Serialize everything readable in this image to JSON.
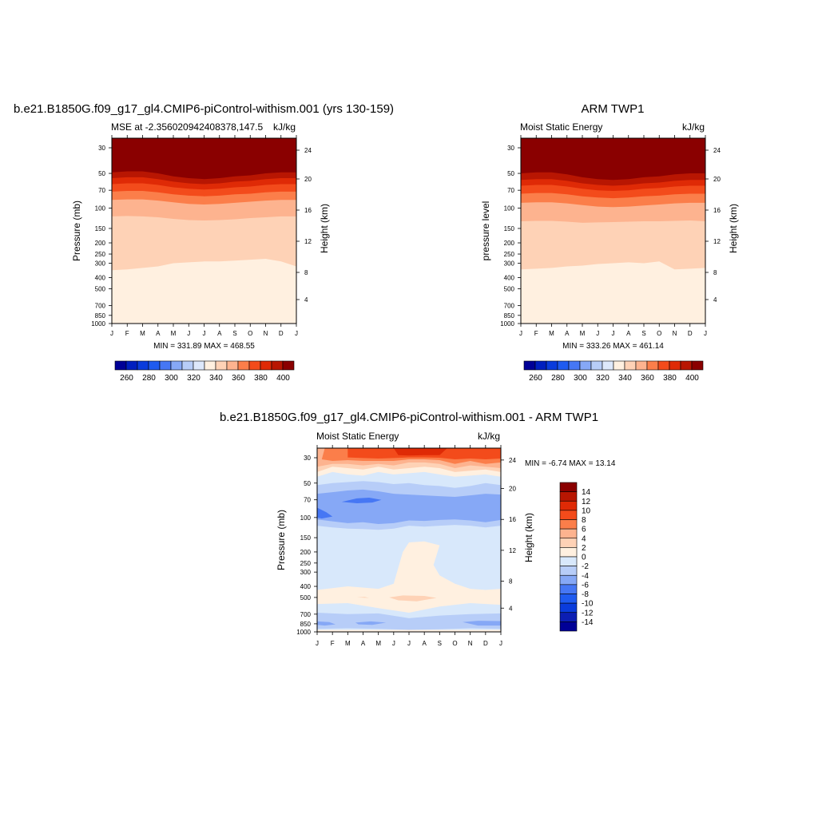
{
  "chart_data": [
    {
      "type": "heatmap",
      "title": "b.e21.B1850G.f09_g17_gl4.CMIP6-piControl-withism.001 (yrs 130-159)",
      "left_subtitle": "MSE at -2.356020942408378,147.5",
      "right_subtitle": "kJ/kg",
      "ylabel": "Pressure (mb)",
      "ylabel_right": "Height (km)",
      "x_ticks": [
        "J",
        "F",
        "M",
        "A",
        "M",
        "J",
        "J",
        "A",
        "S",
        "O",
        "N",
        "D",
        "J"
      ],
      "y_ticks": [
        30,
        50,
        70,
        100,
        150,
        200,
        250,
        300,
        400,
        500,
        700,
        850,
        1000
      ],
      "height_ticks": [
        24,
        20,
        16,
        12,
        8,
        4
      ],
      "minmax": "MIN = 331.89 MAX = 468.55",
      "colorbar_labels": [
        "260",
        "280",
        "300",
        "320",
        "340",
        "360",
        "380",
        "400"
      ],
      "contour_levels": [
        400,
        390,
        380,
        370,
        360,
        350,
        340,
        330
      ],
      "contour_boundaries_mb": [
        [
          49,
          48,
          48,
          50,
          53,
          55,
          56,
          55,
          53,
          52,
          50,
          49,
          49
        ],
        [
          55,
          54,
          54,
          56,
          59,
          61,
          62,
          61,
          59,
          58,
          56,
          55,
          55
        ],
        [
          62,
          61,
          61,
          63,
          66,
          68,
          69,
          68,
          66,
          65,
          63,
          62,
          62
        ],
        [
          72,
          71,
          71,
          73,
          76,
          78,
          79,
          78,
          76,
          75,
          73,
          72,
          72
        ],
        [
          85,
          84,
          84,
          86,
          89,
          92,
          93,
          92,
          90,
          88,
          86,
          85,
          85
        ],
        [
          118,
          117,
          118,
          120,
          124,
          127,
          128,
          127,
          125,
          122,
          120,
          118,
          118
        ],
        [
          345,
          340,
          330,
          320,
          300,
          295,
          290,
          290,
          285,
          280,
          275,
          290,
          320
        ],
        [
          900,
          900,
          900,
          900,
          900,
          900,
          900,
          900,
          900,
          900,
          900,
          900,
          900
        ]
      ]
    },
    {
      "type": "heatmap",
      "title": "ARM TWP1",
      "left_subtitle": "Moist Static Energy",
      "right_subtitle": "kJ/kg",
      "ylabel": "pressure level",
      "ylabel_right": "Height (km)",
      "x_ticks": [
        "J",
        "F",
        "M",
        "A",
        "M",
        "J",
        "J",
        "A",
        "S",
        "O",
        "N",
        "D",
        "J"
      ],
      "y_ticks": [
        30,
        50,
        70,
        100,
        150,
        200,
        250,
        300,
        400,
        500,
        700,
        850,
        1000
      ],
      "height_ticks": [
        24,
        20,
        16,
        12,
        8,
        4
      ],
      "minmax": "MIN = 333.26 MAX = 461.14",
      "colorbar_labels": [
        "260",
        "280",
        "300",
        "320",
        "340",
        "360",
        "380",
        "400"
      ],
      "contour_levels": [
        400,
        390,
        380,
        370,
        360,
        350,
        340,
        330
      ],
      "contour_boundaries_mb": [
        [
          50,
          49,
          49,
          51,
          54,
          56,
          57,
          56,
          54,
          53,
          51,
          50,
          50
        ],
        [
          57,
          56,
          56,
          58,
          61,
          63,
          64,
          63,
          61,
          60,
          58,
          57,
          57
        ],
        [
          64,
          63,
          63,
          65,
          68,
          70,
          71,
          70,
          68,
          67,
          65,
          64,
          64
        ],
        [
          75,
          74,
          74,
          76,
          79,
          81,
          82,
          81,
          79,
          78,
          76,
          75,
          75
        ],
        [
          90,
          89,
          89,
          91,
          94,
          97,
          98,
          97,
          95,
          93,
          91,
          90,
          90
        ],
        [
          130,
          129,
          129,
          131,
          134,
          133,
          132,
          131,
          130,
          130,
          129,
          128,
          130
        ],
        [
          340,
          335,
          330,
          320,
          315,
          305,
          300,
          295,
          300,
          290,
          340,
          335,
          330
        ],
        [
          880,
          870,
          880,
          880,
          860,
          870,
          880,
          870,
          880,
          860,
          860,
          870,
          880
        ]
      ]
    },
    {
      "type": "heatmap",
      "title": "b.e21.B1850G.f09_g17_gl4.CMIP6-piControl-withism.001 - ARM TWP1",
      "left_subtitle": "Moist Static Energy",
      "right_subtitle": "kJ/kg",
      "ylabel": "Pressure (mb)",
      "ylabel_right": "Height (km)",
      "x_ticks": [
        "J",
        "F",
        "M",
        "A",
        "M",
        "J",
        "J",
        "A",
        "S",
        "O",
        "N",
        "D",
        "J"
      ],
      "y_ticks": [
        30,
        50,
        70,
        100,
        150,
        200,
        250,
        300,
        400,
        500,
        700,
        850,
        1000
      ],
      "height_ticks": [
        24,
        20,
        16,
        12,
        8,
        4
      ],
      "minmax": "MIN =  -6.74 MAX =  13.14",
      "colorbar_labels": [
        "14",
        "12",
        "10",
        "8",
        "6",
        "4",
        "2",
        "0",
        "-2",
        "-4",
        "-6",
        "-8",
        "-10",
        "-12",
        "-14"
      ],
      "value_range": [
        -6.74,
        13.14
      ]
    }
  ],
  "colors": {
    "mse_palette": [
      "#000096",
      "#001fbf",
      "#0a3cdc",
      "#1f5bf0",
      "#4677f4",
      "#86a8f6",
      "#b7cdf8",
      "#dde8fb",
      "#fff0e0",
      "#fed2b6",
      "#fdb38f",
      "#fb7e4a",
      "#f34b1b",
      "#df2a06",
      "#b81602",
      "#8a0000"
    ],
    "diff_palette": [
      "#000096",
      "#0c1eb3",
      "#0a3cdc",
      "#1f5bf0",
      "#4677f4",
      "#86a8f6",
      "#b7cdf8",
      "#d8e8fb",
      "#fff0e0",
      "#fed2b6",
      "#fdb38f",
      "#fb7e4a",
      "#f34b1b",
      "#df2a06",
      "#b81602",
      "#8a0000"
    ]
  }
}
